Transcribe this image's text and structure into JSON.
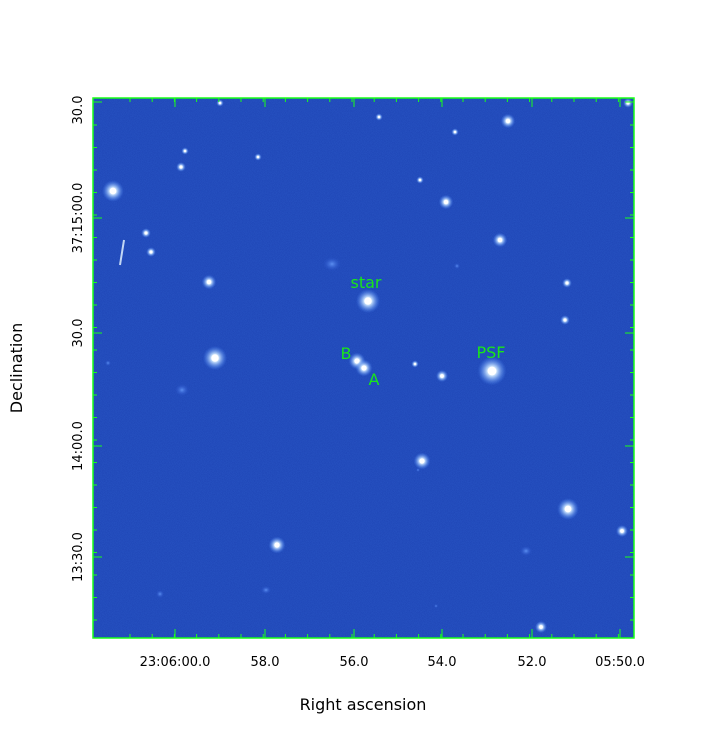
{
  "figure": {
    "xlabel": "Right ascension",
    "ylabel": "Declination",
    "x_ticks": [
      "23:06:00.0",
      "58.0",
      "56.0",
      "54.0",
      "52.0",
      "05:50.0"
    ],
    "y_ticks": [
      "30.0",
      "37:15:00.0",
      "30.0",
      "14:00.0",
      "13:30.0"
    ],
    "annotations": [
      {
        "text": "star"
      },
      {
        "text": "B"
      },
      {
        "text": "A"
      },
      {
        "text": "PSF"
      }
    ],
    "colors": {
      "background": "#1a3fb0",
      "frame": "#19ff19",
      "annotation": "#19e619",
      "star_core": "#ffffff",
      "star_halo": "#7fc8ff"
    }
  }
}
